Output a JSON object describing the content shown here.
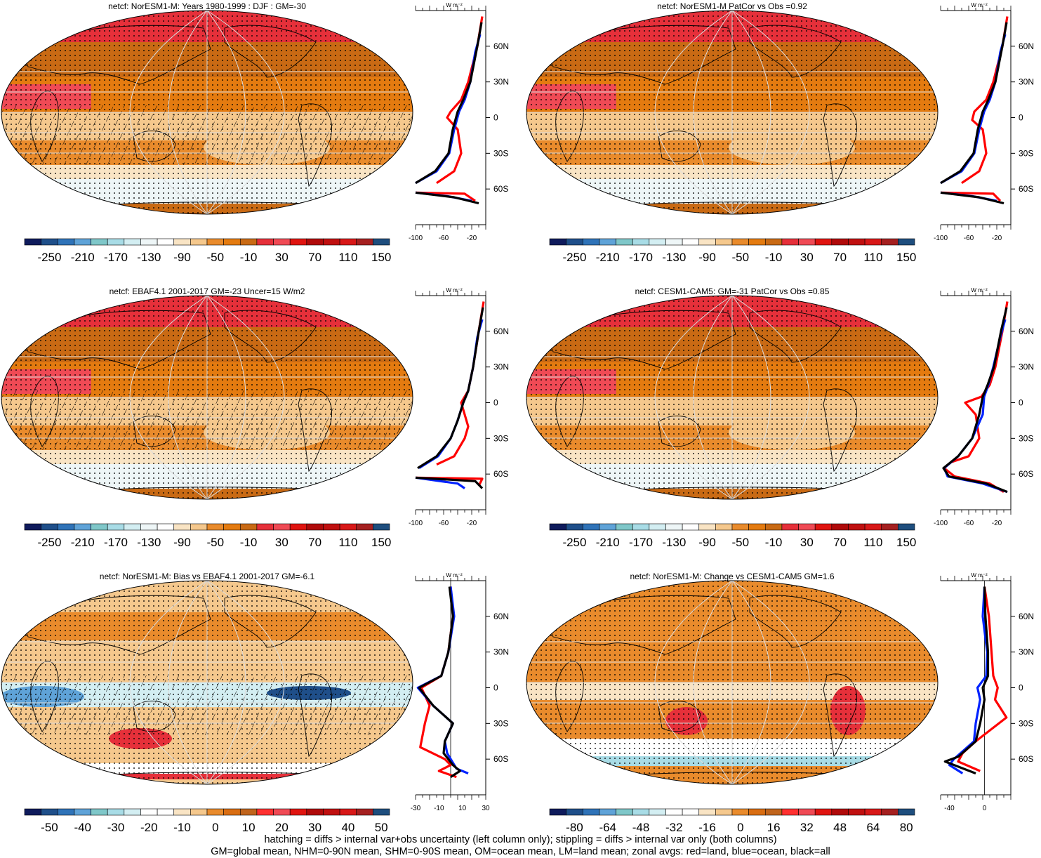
{
  "panels": [
    {
      "id": "p1",
      "title": "netcf: NorESM1-M: Years 1980-1999 : DJF : GM=-30",
      "palette": "main",
      "hatch": true,
      "bias": false,
      "colorbar_labels": [
        "-250",
        "-210",
        "-170",
        "-130",
        "-90",
        "-50",
        "-10",
        "30",
        "70",
        "110",
        "150"
      ],
      "zonal_xticks": [
        "-100",
        "-60",
        "-20"
      ],
      "zonal_xrange": [
        -100,
        0
      ],
      "zonal_unit": "W m⁻²",
      "lat_labels": [
        "60N",
        "30N",
        "0",
        "30S",
        "60S"
      ],
      "series": {
        "land": [
          [
            -5,
            85
          ],
          [
            -12,
            60
          ],
          [
            -25,
            30
          ],
          [
            -35,
            15
          ],
          [
            -50,
            5
          ],
          [
            -55,
            0
          ],
          [
            -40,
            -10
          ],
          [
            -35,
            -30
          ],
          [
            -45,
            -45
          ],
          [
            -70,
            -55
          ],
          [
            null,
            null
          ],
          [
            -100,
            -63
          ],
          [
            -30,
            -64
          ],
          [
            -15,
            -70
          ]
        ],
        "ocean": [
          [
            -8,
            70
          ],
          [
            -15,
            55
          ],
          [
            -22,
            30
          ],
          [
            -30,
            15
          ],
          [
            -38,
            5
          ],
          [
            -45,
            -10
          ],
          [
            -52,
            -30
          ],
          [
            -70,
            -45
          ],
          [
            -100,
            -55
          ],
          [
            null,
            null
          ],
          [
            -100,
            -63
          ],
          [
            -55,
            -66
          ],
          [
            -20,
            -70
          ]
        ],
        "all": [
          [
            -6,
            80
          ],
          [
            -12,
            60
          ],
          [
            -22,
            30
          ],
          [
            -32,
            15
          ],
          [
            -40,
            5
          ],
          [
            -47,
            -10
          ],
          [
            -53,
            -30
          ],
          [
            -72,
            -45
          ],
          [
            -100,
            -55
          ],
          [
            null,
            null
          ],
          [
            -100,
            -63
          ],
          [
            -45,
            -67
          ],
          [
            -10,
            -72
          ]
        ]
      }
    },
    {
      "id": "p2",
      "title": "netcf: NorESM1-M PatCor vs Obs =0.92",
      "palette": "main",
      "hatch": false,
      "bias": false,
      "colorbar_labels": [
        "-250",
        "-210",
        "-170",
        "-130",
        "-90",
        "-50",
        "-10",
        "30",
        "70",
        "110",
        "150"
      ],
      "zonal_xticks": [
        "-100",
        "-60",
        "-20"
      ],
      "zonal_xrange": [
        -100,
        0
      ],
      "zonal_unit": "W m⁻²",
      "lat_labels": [
        "60N",
        "30N",
        "0",
        "30S",
        "60S"
      ],
      "series": {
        "land": [
          [
            -5,
            85
          ],
          [
            -12,
            60
          ],
          [
            -25,
            30
          ],
          [
            -35,
            15
          ],
          [
            -52,
            5
          ],
          [
            -55,
            -2
          ],
          [
            -40,
            -10
          ],
          [
            -35,
            -30
          ],
          [
            -45,
            -45
          ],
          [
            -70,
            -55
          ],
          [
            null,
            null
          ],
          [
            -100,
            -63
          ],
          [
            -25,
            -64
          ],
          [
            -15,
            -70
          ]
        ],
        "ocean": [
          [
            -8,
            70
          ],
          [
            -15,
            55
          ],
          [
            -22,
            30
          ],
          [
            -30,
            15
          ],
          [
            -38,
            5
          ],
          [
            -45,
            -10
          ],
          [
            -52,
            -30
          ],
          [
            -70,
            -45
          ],
          [
            -100,
            -55
          ],
          [
            null,
            null
          ],
          [
            -100,
            -63
          ],
          [
            -55,
            -66
          ],
          [
            -20,
            -70
          ]
        ],
        "all": [
          [
            -6,
            80
          ],
          [
            -12,
            60
          ],
          [
            -22,
            30
          ],
          [
            -32,
            15
          ],
          [
            -40,
            5
          ],
          [
            -47,
            -10
          ],
          [
            -53,
            -30
          ],
          [
            -72,
            -45
          ],
          [
            -100,
            -55
          ],
          [
            null,
            null
          ],
          [
            -100,
            -63
          ],
          [
            -45,
            -67
          ],
          [
            -10,
            -72
          ]
        ]
      }
    },
    {
      "id": "p3",
      "title": "netcf: EBAF4.1 2001-2017 GM=-23 Uncer=15 W/m2",
      "palette": "main",
      "hatch": true,
      "bias": false,
      "colorbar_labels": [
        "-250",
        "-210",
        "-170",
        "-130",
        "-90",
        "-50",
        "-10",
        "30",
        "70",
        "110",
        "150"
      ],
      "zonal_xticks": [
        "-100",
        "-60",
        "-20"
      ],
      "zonal_xrange": [
        -100,
        0
      ],
      "zonal_unit": "W m⁻²",
      "lat_labels": [
        "60N",
        "30N",
        "0",
        "30S",
        "60S"
      ],
      "series": {
        "land": [
          [
            -3,
            85
          ],
          [
            -10,
            60
          ],
          [
            -18,
            30
          ],
          [
            -25,
            10
          ],
          [
            -35,
            0
          ],
          [
            -30,
            -10
          ],
          [
            -25,
            -20
          ],
          [
            -30,
            -30
          ],
          [
            -45,
            -45
          ],
          [
            -70,
            -52
          ],
          [
            null,
            null
          ],
          [
            -100,
            -63
          ],
          [
            -5,
            -64
          ],
          [
            -10,
            -70
          ]
        ],
        "ocean": [
          [
            -5,
            70
          ],
          [
            -12,
            55
          ],
          [
            -18,
            30
          ],
          [
            -25,
            10
          ],
          [
            -32,
            0
          ],
          [
            -40,
            -15
          ],
          [
            -50,
            -30
          ],
          [
            -68,
            -45
          ],
          [
            -95,
            -55
          ],
          [
            null,
            null
          ],
          [
            -100,
            -63
          ],
          [
            -40,
            -68
          ],
          [
            -30,
            -72
          ]
        ],
        "all": [
          [
            -4,
            80
          ],
          [
            -10,
            60
          ],
          [
            -18,
            30
          ],
          [
            -25,
            10
          ],
          [
            -32,
            0
          ],
          [
            -40,
            -15
          ],
          [
            -50,
            -30
          ],
          [
            -70,
            -45
          ],
          [
            -97,
            -55
          ],
          [
            null,
            null
          ],
          [
            -100,
            -63
          ],
          [
            -15,
            -66
          ],
          [
            -5,
            -72
          ]
        ]
      }
    },
    {
      "id": "p4",
      "title": "netcf: CESM1-CAM5: GM=-31 PatCor vs Obs =0.85",
      "palette": "main",
      "hatch": false,
      "bias": false,
      "colorbar_labels": [
        "-250",
        "-210",
        "-170",
        "-130",
        "-90",
        "-50",
        "-10",
        "30",
        "70",
        "110",
        "150"
      ],
      "zonal_xticks": [
        "-100",
        "-60",
        "-20"
      ],
      "zonal_xrange": [
        -100,
        0
      ],
      "zonal_unit": "W m⁻²",
      "lat_labels": [
        "60N",
        "30N",
        "0",
        "30S",
        "60S"
      ],
      "series": {
        "land": [
          [
            -5,
            85
          ],
          [
            -12,
            60
          ],
          [
            -22,
            30
          ],
          [
            -30,
            15
          ],
          [
            -42,
            5
          ],
          [
            -65,
            0
          ],
          [
            -50,
            -10
          ],
          [
            -45,
            -30
          ],
          [
            -60,
            -45
          ],
          [
            -85,
            -50
          ],
          [
            -95,
            -55
          ],
          [
            -80,
            -62
          ],
          [
            -30,
            -68
          ],
          [
            -10,
            -75
          ]
        ],
        "ocean": [
          [
            -8,
            70
          ],
          [
            -15,
            55
          ],
          [
            -25,
            30
          ],
          [
            -32,
            15
          ],
          [
            -38,
            5
          ],
          [
            -40,
            -10
          ],
          [
            -55,
            -30
          ],
          [
            -75,
            -45
          ],
          [
            -95,
            -55
          ],
          [
            -90,
            -62
          ],
          [
            -40,
            -68
          ],
          [
            -5,
            -75
          ]
        ],
        "all": [
          [
            -6,
            80
          ],
          [
            -14,
            60
          ],
          [
            -24,
            30
          ],
          [
            -33,
            15
          ],
          [
            -40,
            5
          ],
          [
            -45,
            -10
          ],
          [
            -55,
            -30
          ],
          [
            -75,
            -45
          ],
          [
            -96,
            -55
          ],
          [
            -88,
            -62
          ],
          [
            -35,
            -68
          ],
          [
            -5,
            -75
          ]
        ]
      }
    },
    {
      "id": "p5",
      "title": "netcf: NorESM1-M: Bias vs EBAF4.1 2001-2017 GM=-6.1",
      "palette": "diff",
      "hatch": true,
      "bias": true,
      "colorbar_labels": [
        "-50",
        "-40",
        "-30",
        "-20",
        "-10",
        "0",
        "10",
        "20",
        "30",
        "40",
        "50"
      ],
      "zonal_xticks": [
        "-30",
        "-10",
        "10",
        "30"
      ],
      "zonal_xrange": [
        -30,
        30
      ],
      "zonal_unit": "W m⁻²",
      "lat_labels": [
        "60N",
        "30N",
        "0",
        "30S",
        "60S"
      ],
      "series": {
        "land": [
          [
            0,
            85
          ],
          [
            2,
            60
          ],
          [
            -2,
            30
          ],
          [
            -8,
            10
          ],
          [
            -25,
            0
          ],
          [
            -18,
            -15
          ],
          [
            -22,
            -30
          ],
          [
            -26,
            -50
          ],
          [
            -5,
            -60
          ],
          [
            0,
            -65
          ],
          [
            -10,
            -70
          ],
          [
            5,
            -75
          ]
        ],
        "ocean": [
          [
            0,
            85
          ],
          [
            3,
            60
          ],
          [
            -2,
            30
          ],
          [
            -8,
            10
          ],
          [
            -28,
            0
          ],
          [
            -15,
            -15
          ],
          [
            2,
            -30
          ],
          [
            -5,
            -45
          ],
          [
            -3,
            -55
          ],
          [
            5,
            -68
          ],
          [
            15,
            -72
          ]
        ],
        "all": [
          [
            -1,
            85
          ],
          [
            2,
            60
          ],
          [
            -2,
            30
          ],
          [
            -8,
            10
          ],
          [
            -27,
            0
          ],
          [
            -15,
            -15
          ],
          [
            2,
            -30
          ],
          [
            -5,
            -45
          ],
          [
            -6,
            -55
          ],
          [
            2,
            -65
          ],
          [
            8,
            -70
          ],
          [
            0,
            -75
          ]
        ]
      }
    },
    {
      "id": "p6",
      "title": "netcf: NorESM1-M: Change vs CESM1-CAM5 GM=1.6",
      "palette": "diff",
      "hatch": false,
      "bias": false,
      "colorbar_labels": [
        "-80",
        "-64",
        "-48",
        "-32",
        "-16",
        "0",
        "16",
        "32",
        "48",
        "64",
        "80"
      ],
      "zonal_xticks": [
        "-40",
        "0"
      ],
      "zonal_xrange": [
        -50,
        30
      ],
      "zonal_unit": "W m⁻²",
      "lat_labels": [
        "60N",
        "30N",
        "0",
        "30S",
        "60S"
      ],
      "series": {
        "land": [
          [
            0,
            85
          ],
          [
            5,
            60
          ],
          [
            8,
            30
          ],
          [
            10,
            10
          ],
          [
            15,
            0
          ],
          [
            12,
            -10
          ],
          [
            25,
            -25
          ],
          [
            -10,
            -45
          ],
          [
            -25,
            -55
          ],
          [
            -30,
            -62
          ],
          [
            -5,
            -70
          ]
        ],
        "ocean": [
          [
            0,
            85
          ],
          [
            -2,
            60
          ],
          [
            3,
            30
          ],
          [
            2,
            10
          ],
          [
            -8,
            0
          ],
          [
            -5,
            -10
          ],
          [
            -10,
            -30
          ],
          [
            -12,
            -45
          ],
          [
            -35,
            -60
          ],
          [
            -40,
            -65
          ],
          [
            -25,
            -72
          ]
        ],
        "all": [
          [
            0,
            85
          ],
          [
            1,
            60
          ],
          [
            4,
            30
          ],
          [
            4,
            10
          ],
          [
            -2,
            0
          ],
          [
            0,
            -10
          ],
          [
            -5,
            -30
          ],
          [
            -10,
            -45
          ],
          [
            -30,
            -58
          ],
          [
            -45,
            -62
          ],
          [
            -10,
            -72
          ]
        ]
      }
    }
  ],
  "footer": [
    "hatching = diffs > internal var+obs uncertainty (left column only); stippling = diffs > internal var only (both columns)",
    "GM=global mean, NHM=0-90N mean, SHM=0-90S mean, OM=ocean mean, LM=land mean; zonal avgs: red=land, blue=ocean, black=all"
  ],
  "colors": {
    "main": [
      "#0f1b5c",
      "#1f4f8a",
      "#2f73b8",
      "#5fa3d8",
      "#7fc7c9",
      "#a8dce6",
      "#d3eef2",
      "#eef6f7",
      "#ffffff",
      "#f9e4c4",
      "#f5c88d",
      "#e98b2c",
      "#e47b10",
      "#c96a14",
      "#e6303a",
      "#f04a55",
      "#e01410",
      "#b00a0a",
      "#c01010",
      "#d81818",
      "#a52020",
      "#1e4e7e"
    ],
    "diff": [
      "#0f1b5c",
      "#1f4f8a",
      "#2f73b8",
      "#5fa3d8",
      "#7fc7c9",
      "#a8dce6",
      "#d3eef2",
      "#ffffff",
      "#ffffff",
      "#f9e4c4",
      "#f5c88d",
      "#e98b2c",
      "#d96d12",
      "#c0641c",
      "#ff3030",
      "#f04a55",
      "#e01410",
      "#b00a0a",
      "#c01010",
      "#d81818",
      "#a52020",
      "#1e4e7e"
    ],
    "land": "#ff0000",
    "ocean": "#0022ff",
    "all": "#000000"
  }
}
